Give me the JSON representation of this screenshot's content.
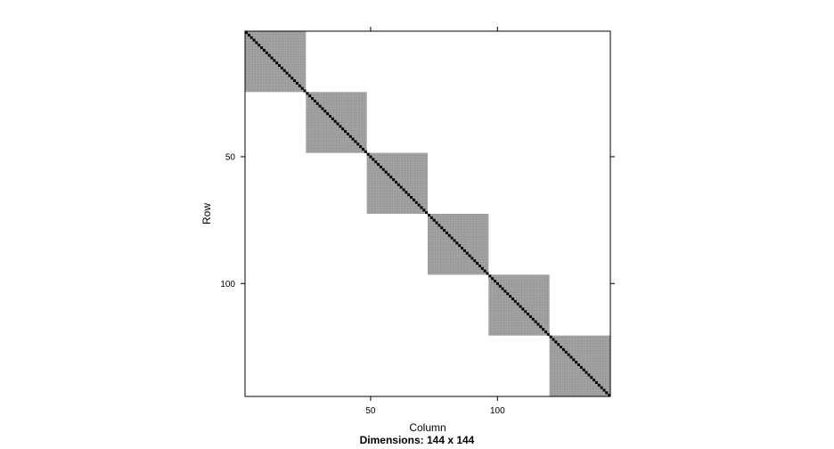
{
  "chart_data": {
    "type": "heatmap",
    "subtype": "sparse-matrix-image",
    "nrow": 144,
    "ncol": 144,
    "xlabel": "Column",
    "ylabel": "Row",
    "sub": "Dimensions: 144 x 144",
    "x_ticks": [
      50,
      100
    ],
    "y_ticks": [
      50,
      100
    ],
    "xlim": [
      0.5,
      144.5
    ],
    "ylim": [
      144.5,
      0.5
    ],
    "blocks": [
      {
        "row_start": 1,
        "row_end": 24,
        "col_start": 1,
        "col_end": 24
      },
      {
        "row_start": 25,
        "row_end": 48,
        "col_start": 25,
        "col_end": 48
      },
      {
        "row_start": 49,
        "row_end": 72,
        "col_start": 49,
        "col_end": 72
      },
      {
        "row_start": 73,
        "row_end": 96,
        "col_start": 73,
        "col_end": 96
      },
      {
        "row_start": 97,
        "row_end": 120,
        "col_start": 97,
        "col_end": 120
      },
      {
        "row_start": 121,
        "row_end": 144,
        "col_start": 121,
        "col_end": 144
      }
    ],
    "diagonal": true,
    "grid": false,
    "colors": {
      "block_fill": "#a9a9a9",
      "block_grid": "#8c8c8c",
      "diagonal": "#000000",
      "frame": "#000000",
      "background": "#ffffff"
    }
  }
}
